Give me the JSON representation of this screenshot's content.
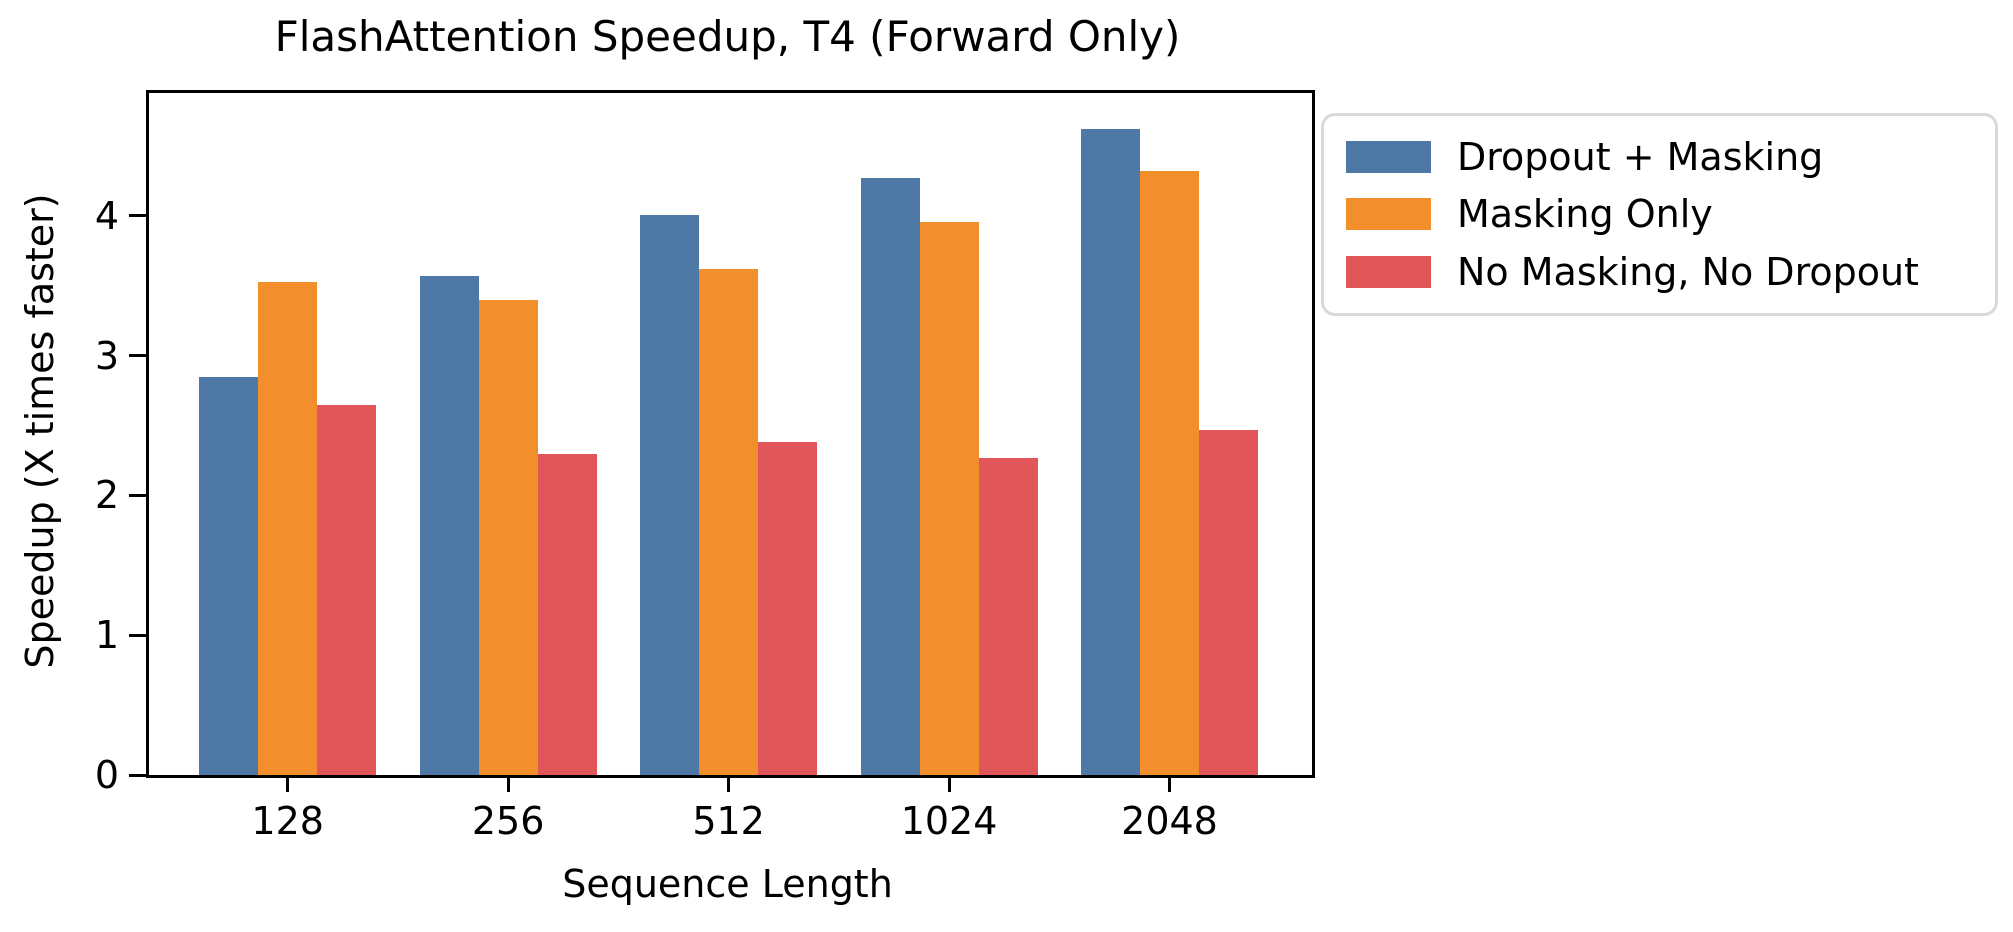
{
  "chart_data": {
    "type": "bar",
    "title": "FlashAttention Speedup, T4 (Forward Only)",
    "xlabel": "Sequence Length",
    "ylabel": "Speedup (X times faster)",
    "categories": [
      "128",
      "256",
      "512",
      "1024",
      "2048"
    ],
    "series": [
      {
        "name": "Dropout + Masking",
        "color": "#4E79A7",
        "values": [
          2.85,
          3.57,
          4.01,
          4.27,
          4.62
        ]
      },
      {
        "name": "Masking Only",
        "color": "#F28E2B",
        "values": [
          3.53,
          3.4,
          3.62,
          3.96,
          4.32
        ]
      },
      {
        "name": "No Masking, No Dropout",
        "color": "#E15759",
        "values": [
          2.65,
          2.3,
          2.38,
          2.27,
          2.47
        ]
      }
    ],
    "ylim": [
      0,
      4.88
    ],
    "yticks": [
      "0",
      "1",
      "2",
      "3",
      "4"
    ],
    "grid": false,
    "legend_position": "outside upper right"
  },
  "axis_color": "#000000",
  "legend_border_color": "#d9d9d9"
}
